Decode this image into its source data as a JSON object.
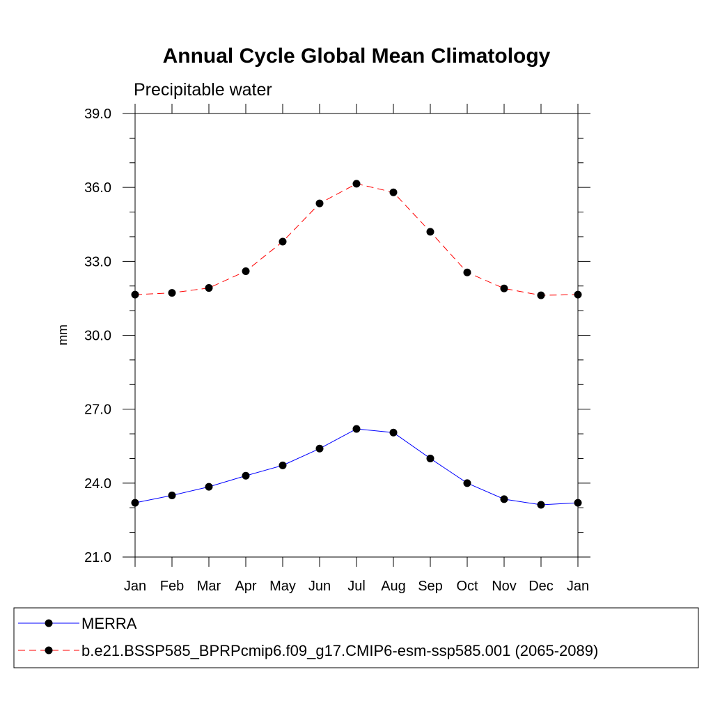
{
  "chart_data": {
    "type": "line",
    "title": "Annual Cycle Global Mean Climatology",
    "subtitle": "Precipitable water",
    "xlabel": "",
    "ylabel": "mm",
    "categories": [
      "Jan",
      "Feb",
      "Mar",
      "Apr",
      "May",
      "Jun",
      "Jul",
      "Aug",
      "Sep",
      "Oct",
      "Nov",
      "Dec",
      "Jan"
    ],
    "ylim": [
      21.0,
      39.0
    ],
    "yticks": [
      "21.0",
      "24.0",
      "27.0",
      "30.0",
      "33.0",
      "36.0",
      "39.0"
    ],
    "grid": false,
    "legend_position": "bottom",
    "series": [
      {
        "name": "MERRA",
        "color": "#0000ff",
        "style": "solid",
        "values": [
          23.2,
          23.5,
          23.85,
          24.3,
          24.72,
          25.4,
          26.2,
          26.05,
          25.0,
          24.0,
          23.35,
          23.12,
          23.2
        ]
      },
      {
        "name": "b.e21.BSSP585_BPRPcmip6.f09_g17.CMIP6-esm-ssp585.001 (2065-2089)",
        "color": "#ff0000",
        "style": "dashed",
        "values": [
          31.65,
          31.72,
          31.92,
          32.6,
          33.8,
          35.35,
          36.15,
          35.8,
          34.2,
          32.55,
          31.9,
          31.62,
          31.65
        ]
      }
    ]
  }
}
